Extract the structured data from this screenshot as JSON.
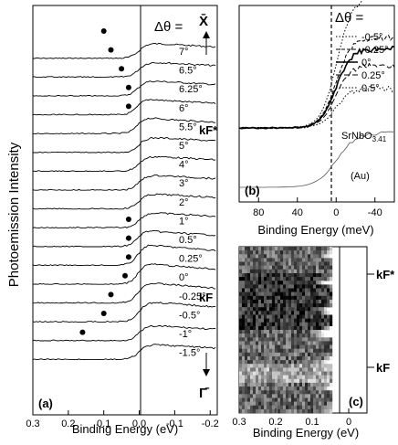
{
  "panel_a": {
    "label": "(a)",
    "delta_theta_label": "Δθ =",
    "top_symbol": "X̄",
    "bottom_symbol": "Γ̄",
    "kf_label": "kF",
    "kf_star_label": "kF*",
    "ylabel": "Photoemission Intensity",
    "xlabel": "Binding Energy (eV)",
    "ticks": [
      "0.3",
      "0.2",
      "0.1",
      "0.0",
      "-0.1",
      "-0.2"
    ],
    "angles": [
      "7°",
      "6.5°",
      "6.25°",
      "6°",
      "5.5°",
      "5°",
      "4°",
      "3°",
      "2°",
      "1°",
      "0.5°",
      "0.25°",
      "0°",
      "-0.25°",
      "-0.5°",
      "-1°",
      "-1.5°"
    ]
  },
  "panel_b": {
    "label": "(b)",
    "delta_theta_label": "Δθ =",
    "legend": [
      "-0.5°",
      "-0.25°",
      "0°",
      "0.25°",
      "0.5°"
    ],
    "sample_label": "SrNbO3.41",
    "au_label": "(Au)",
    "xlabel": "Binding Energy (meV)",
    "ticks": [
      "80",
      "40",
      "0",
      "-40"
    ]
  },
  "panel_c": {
    "label": "(c)",
    "xlabel": "Binding Energy (eV)",
    "ticks": [
      "0.3",
      "0.2",
      "0.1",
      "0"
    ],
    "kf_label": "kF",
    "kf_star_label": "kF*"
  },
  "chart_data": [
    {
      "type": "line",
      "panel": "(a)",
      "xlabel": "Binding Energy (eV)",
      "ylabel": "Photoemission Intensity",
      "xlim": [
        0.3,
        -0.22
      ],
      "series_names": [
        "7°",
        "6.5°",
        "6.25°",
        "6°",
        "5.5°",
        "5°",
        "4°",
        "3°",
        "2°",
        "1°",
        "0.5°",
        "0.25°",
        "0°",
        "-0.25°",
        "-0.5°",
        "-1°",
        "-1.5°"
      ],
      "peak_positions_eV": [
        0.1,
        0.08,
        0.05,
        0.03,
        0.03,
        null,
        null,
        null,
        null,
        null,
        0.03,
        0.03,
        0.03,
        0.04,
        0.08,
        0.1,
        0.16
      ]
    },
    {
      "type": "line",
      "panel": "(b)",
      "xlabel": "Binding Energy (meV)",
      "xlim": [
        100,
        -60
      ],
      "series": [
        {
          "name": "-0.5°"
        },
        {
          "name": "-0.25°"
        },
        {
          "name": "0°"
        },
        {
          "name": "0.25°"
        },
        {
          "name": "0.5°"
        },
        {
          "name": "(Au)"
        }
      ]
    },
    {
      "type": "heatmap",
      "panel": "(c)",
      "xlabel": "Binding Energy (eV)",
      "xlim": [
        0.3,
        -0.05
      ],
      "row_labels": [
        "kF*",
        "kF"
      ]
    }
  ]
}
